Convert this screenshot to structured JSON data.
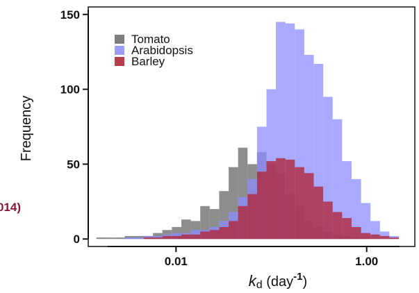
{
  "chart_data": {
    "type": "bar",
    "title": "",
    "xlabel": "",
    "xlabel_parts": {
      "symbol": "k",
      "subscript": "d",
      "unit_prefix": " (day",
      "superscript": "-1",
      "unit_suffix": ")"
    },
    "ylabel": "Frequency",
    "x_scale": "log10",
    "x_range": [
      0.0012,
      3.2
    ],
    "x_ticks": [
      {
        "value": 0.01,
        "label": "0.01"
      },
      {
        "value": 1.0,
        "label": "1.00"
      }
    ],
    "ylim": [
      -5,
      155
    ],
    "y_ticks": [
      {
        "value": 0,
        "label": "0"
      },
      {
        "value": 50,
        "label": "50"
      },
      {
        "value": 100,
        "label": "100"
      },
      {
        "value": 150,
        "label": "150"
      }
    ],
    "grid": false,
    "legend_position": "top-left",
    "bin_edges": [
      0.00146,
      0.00183,
      0.0023,
      0.00289,
      0.00363,
      0.00456,
      0.00573,
      0.0072,
      0.00905,
      0.01137,
      0.01429,
      0.01796,
      0.02257,
      0.02836,
      0.03564,
      0.04479,
      0.05628,
      0.07073,
      0.08888,
      0.11169,
      0.14035,
      0.17637,
      0.22163,
      0.2785,
      0.34997,
      0.43977,
      0.55262,
      0.69444,
      0.87264,
      1.09656,
      1.37795,
      1.73155,
      2.17589
    ],
    "series": [
      {
        "name": "Tomato",
        "color": "#707070",
        "opacity": 0.8,
        "values": [
          1,
          1,
          1,
          2,
          2,
          2,
          4,
          6,
          8,
          13,
          12,
          22,
          20,
          32,
          48,
          61,
          50,
          58,
          50,
          44,
          30,
          22,
          12,
          8,
          5,
          3,
          2,
          1,
          1,
          0,
          0,
          0
        ]
      },
      {
        "name": "Arabidopsis",
        "color": "#8c8cff",
        "opacity": 0.75,
        "values": [
          0,
          0,
          0,
          1,
          1,
          2,
          2,
          3,
          4,
          4,
          6,
          6,
          8,
          12,
          18,
          28,
          40,
          75,
          100,
          145,
          144,
          140,
          123,
          117,
          95,
          80,
          52,
          40,
          24,
          12,
          5,
          2
        ]
      },
      {
        "name": "Barley",
        "color": "#b0283c",
        "opacity": 0.8,
        "values": [
          0,
          0,
          0,
          0,
          0,
          1,
          1,
          2,
          2,
          3,
          3,
          5,
          6,
          8,
          12,
          22,
          30,
          45,
          52,
          54,
          53,
          48,
          44,
          35,
          25,
          18,
          14,
          8,
          4,
          3,
          2,
          1
        ]
      }
    ]
  },
  "fragment_text": "014)"
}
